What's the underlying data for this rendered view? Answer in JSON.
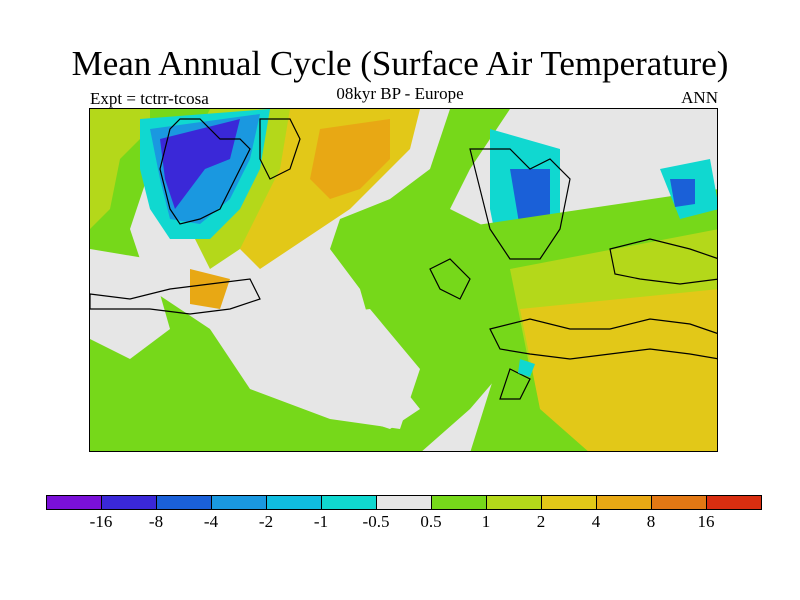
{
  "title": "Mean Annual Cycle (Surface Air Temperature)",
  "subtitle": "08kyr BP - Europe",
  "left_label": "Expt = tctrr-tcosa",
  "right_label": "ANN",
  "colors": {
    "c_m16": "#7a10d8",
    "c_m8": "#3a28d8",
    "c_m4": "#1a60d8",
    "c_m2": "#1a98e0",
    "c_m1": "#10bde0",
    "c_m05": "#10d8d0",
    "c_neutral": "#e6e6e6",
    "c_05": "#76d81a",
    "c_1": "#b4d81a",
    "c_2": "#e2c818",
    "c_4": "#e8a814",
    "c_8": "#e27814",
    "c_16": "#d82e10"
  },
  "legend": {
    "colors": [
      "#7a10d8",
      "#3a28d8",
      "#1a60d8",
      "#1a98e0",
      "#10bde0",
      "#10d8d0",
      "#e6e6e6",
      "#76d81a",
      "#b4d81a",
      "#e2c818",
      "#e8a814",
      "#e27814",
      "#d82e10"
    ],
    "labels": [
      "-16",
      "-8",
      "-4",
      "-2",
      "-1",
      "-0.5",
      "0.5",
      "1",
      "2",
      "4",
      "8",
      "16"
    ]
  }
}
